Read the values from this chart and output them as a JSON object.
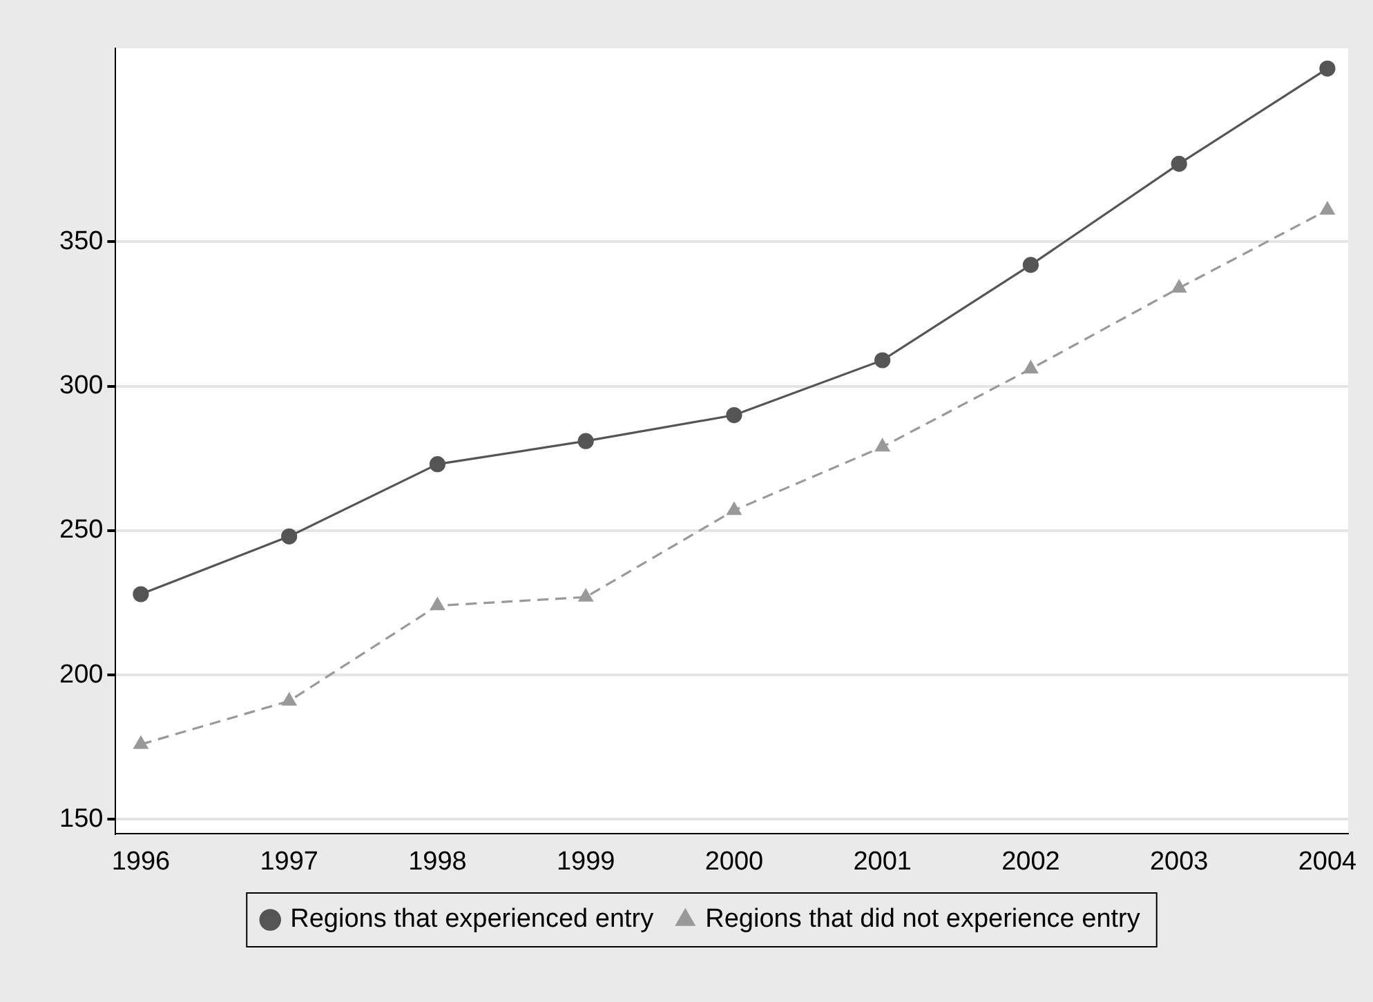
{
  "chart_data": {
    "type": "line",
    "x": [
      1996,
      1997,
      1998,
      1999,
      2000,
      2001,
      2002,
      2003,
      2004
    ],
    "series": [
      {
        "name": "Regions that experienced entry",
        "color": "#555555",
        "marker": "circle",
        "line_style": "solid",
        "values": [
          228,
          248,
          273,
          281,
          290,
          309,
          342,
          377,
          410
        ]
      },
      {
        "name": "Regions that did not experience entry",
        "color": "#999999",
        "marker": "triangle",
        "line_style": "dashed",
        "values": [
          176,
          191,
          224,
          227,
          257,
          279,
          306,
          334,
          361
        ]
      }
    ],
    "xlim": [
      1995.83,
      2004.14
    ],
    "xticks": [
      1996,
      1997,
      1998,
      1999,
      2000,
      2001,
      2002,
      2003,
      2004
    ],
    "ylim": [
      145,
      417
    ],
    "yticks": [
      150,
      200,
      250,
      300,
      350
    ],
    "grid": "y",
    "legend": "bottom"
  }
}
